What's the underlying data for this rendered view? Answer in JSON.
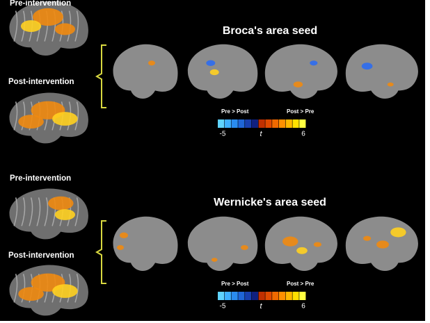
{
  "panels": [
    {
      "pre_label": "Pre-intervention",
      "post_label": "Post-intervention",
      "title": "Broca's area seed",
      "colorbar": {
        "left_label": "Pre > Post",
        "right_label": "Post > Pre",
        "min": -5,
        "symbol": "t",
        "max": 6
      }
    },
    {
      "pre_label": "Pre-intervention",
      "post_label": "Post-intervention",
      "title": "Wernicke's area seed",
      "colorbar": {
        "left_label": "Pre > Post",
        "right_label": "Post > Pre",
        "min": -5,
        "symbol": "t",
        "max": 6
      }
    }
  ]
}
